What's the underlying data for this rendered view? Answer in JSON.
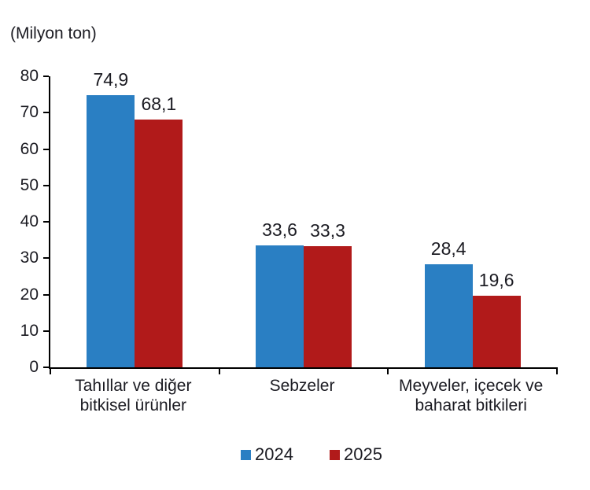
{
  "chart_data": {
    "type": "bar",
    "title": "(Milyon ton)",
    "categories": [
      "Tahıllar ve diğer\nbitkisel ürünler",
      "Sebzeler",
      "Meyveler, içecek ve\nbaharat  bitkileri"
    ],
    "series": [
      {
        "name": "2024",
        "color": "#2A7FC3",
        "values": [
          74.9,
          33.6,
          28.4
        ],
        "labels": [
          "74,9",
          "33,6",
          "28,4"
        ]
      },
      {
        "name": "2025",
        "color": "#B11A1A",
        "values": [
          68.1,
          33.3,
          19.6
        ],
        "labels": [
          "68,1",
          "33,3",
          "19,6"
        ]
      }
    ],
    "ylim": [
      0,
      80
    ],
    "yticks": [
      0,
      10,
      20,
      30,
      40,
      50,
      60,
      70,
      80
    ],
    "grid": false,
    "legend_position": "bottom",
    "decimal_separator": ",",
    "axis_color": "#000000",
    "text_color": "#1b1b22"
  }
}
